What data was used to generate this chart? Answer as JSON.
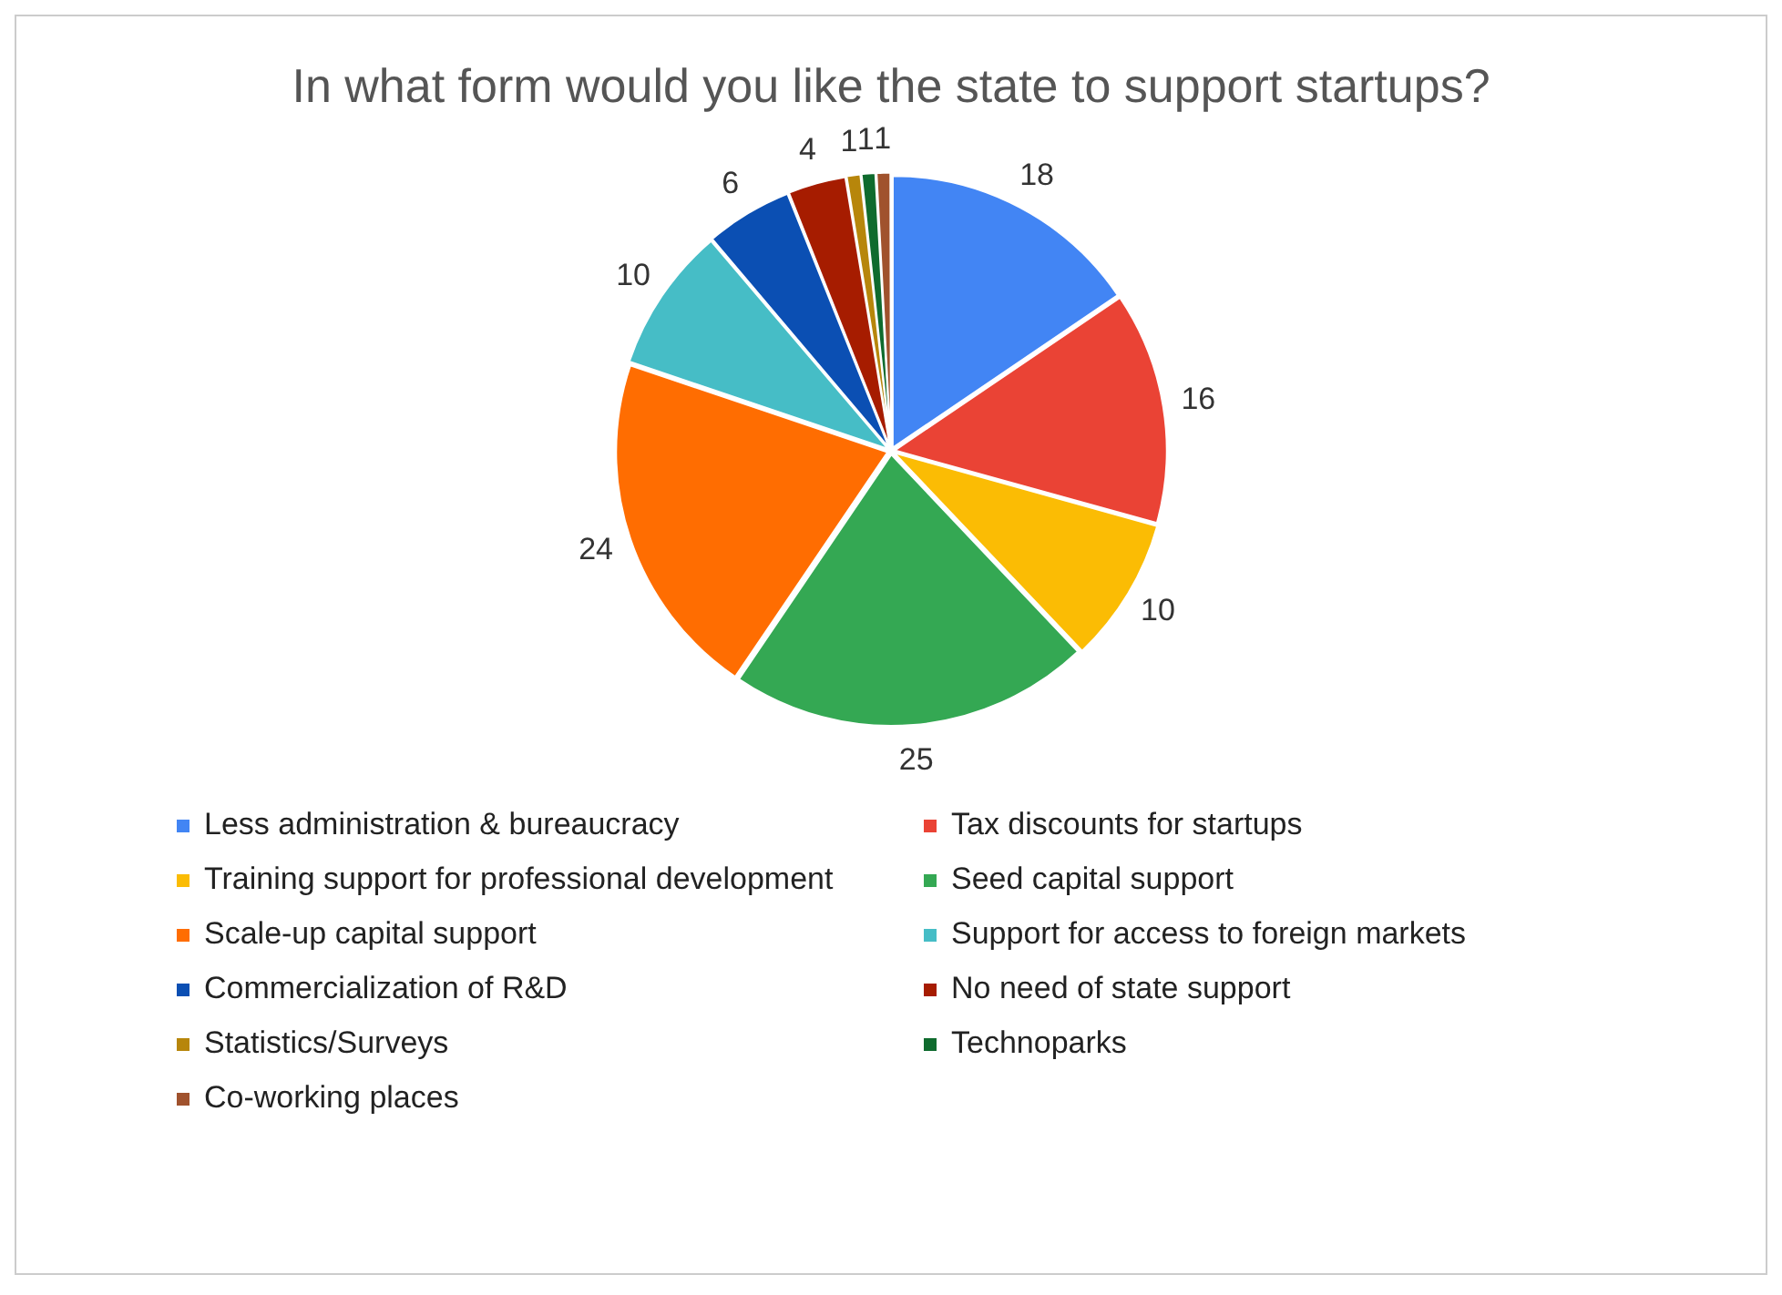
{
  "chart_data": {
    "type": "pie",
    "title": "In what form would you like the state to support startups?",
    "categories": [
      "Less administration & bureaucracy",
      "Tax discounts for startups",
      "Training support for professional development",
      "Seed capital support",
      "Scale-up capital support",
      "Support for access to foreign markets",
      "Commercialization of R&D",
      "No need of state support",
      "Statistics/Surveys",
      "Technoparks",
      "Co-working places"
    ],
    "values": [
      18,
      16,
      10,
      25,
      24,
      10,
      6,
      4,
      1,
      1,
      1
    ],
    "colors": [
      "#4285f4",
      "#ea4335",
      "#fbbc04",
      "#34a853",
      "#ff6d01",
      "#46bdc6",
      "#0b4fb3",
      "#a61c00",
      "#b7860b",
      "#0f6b2e",
      "#a0522d"
    ],
    "data_labels": true,
    "legend": "bottom"
  }
}
